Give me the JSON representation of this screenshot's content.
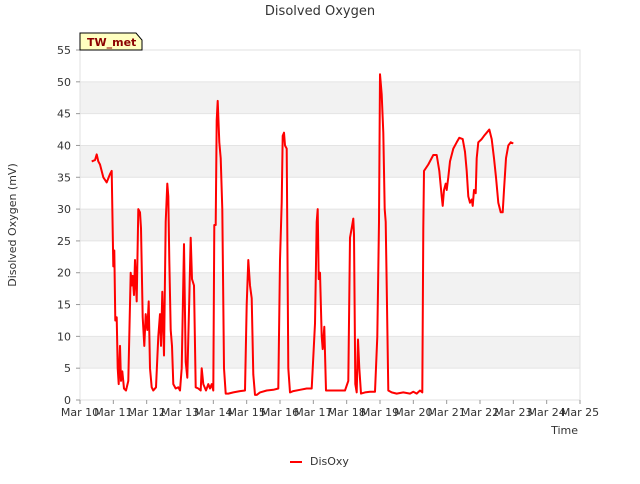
{
  "chart_data": {
    "type": "line",
    "title": "Disolved Oxygen",
    "xlabel": "Time",
    "ylabel": "Disolved Oxygen (mV)",
    "site_badge": "TW_met",
    "xlim": [
      10,
      25
    ],
    "ylim": [
      0,
      55
    ],
    "x_ticks": [
      {
        "value": 10,
        "label": "Mar 10"
      },
      {
        "value": 11,
        "label": "Mar 11"
      },
      {
        "value": 12,
        "label": "Mar 12"
      },
      {
        "value": 13,
        "label": "Mar 13"
      },
      {
        "value": 14,
        "label": "Mar 14"
      },
      {
        "value": 15,
        "label": "Mar 15"
      },
      {
        "value": 16,
        "label": "Mar 16"
      },
      {
        "value": 17,
        "label": "Mar 17"
      },
      {
        "value": 18,
        "label": "Mar 18"
      },
      {
        "value": 19,
        "label": "Mar 19"
      },
      {
        "value": 20,
        "label": "Mar 20"
      },
      {
        "value": 21,
        "label": "Mar 21"
      },
      {
        "value": 22,
        "label": "Mar 22"
      },
      {
        "value": 23,
        "label": "Mar 23"
      },
      {
        "value": 24,
        "label": "Mar 24"
      },
      {
        "value": 25,
        "label": "Mar 25"
      }
    ],
    "y_ticks": [
      0,
      5,
      10,
      15,
      20,
      25,
      30,
      35,
      40,
      45,
      50,
      55
    ],
    "grid": "horizontal alternating bands",
    "legend_position": "bottom-center",
    "series": [
      {
        "name": "DisOxy",
        "color": "#ff0000",
        "points": [
          [
            10.35,
            37.5
          ],
          [
            10.45,
            37.7
          ],
          [
            10.5,
            38.6
          ],
          [
            10.55,
            37.5
          ],
          [
            10.6,
            37.0
          ],
          [
            10.7,
            35.0
          ],
          [
            10.8,
            34.2
          ],
          [
            10.9,
            35.5
          ],
          [
            10.95,
            36.0
          ],
          [
            11.0,
            21.0
          ],
          [
            11.03,
            23.5
          ],
          [
            11.06,
            12.5
          ],
          [
            11.1,
            13.0
          ],
          [
            11.13,
            5.0
          ],
          [
            11.16,
            2.5
          ],
          [
            11.2,
            8.5
          ],
          [
            11.23,
            3.0
          ],
          [
            11.27,
            4.5
          ],
          [
            11.32,
            1.8
          ],
          [
            11.38,
            1.5
          ],
          [
            11.45,
            3.0
          ],
          [
            11.52,
            20.0
          ],
          [
            11.55,
            18.0
          ],
          [
            11.58,
            19.5
          ],
          [
            11.62,
            16.5
          ],
          [
            11.65,
            22.0
          ],
          [
            11.7,
            15.5
          ],
          [
            11.75,
            30.0
          ],
          [
            11.8,
            29.5
          ],
          [
            11.83,
            27.0
          ],
          [
            11.88,
            13.0
          ],
          [
            11.93,
            8.5
          ],
          [
            11.97,
            13.5
          ],
          [
            12.02,
            11.0
          ],
          [
            12.06,
            15.5
          ],
          [
            12.1,
            5.0
          ],
          [
            12.15,
            2.0
          ],
          [
            12.2,
            1.5
          ],
          [
            12.28,
            2.0
          ],
          [
            12.35,
            10.0
          ],
          [
            12.4,
            13.5
          ],
          [
            12.43,
            8.5
          ],
          [
            12.47,
            17.0
          ],
          [
            12.52,
            7.0
          ],
          [
            12.57,
            28.0
          ],
          [
            12.62,
            34.0
          ],
          [
            12.65,
            32.0
          ],
          [
            12.68,
            22.0
          ],
          [
            12.72,
            11.0
          ],
          [
            12.76,
            8.5
          ],
          [
            12.8,
            2.5
          ],
          [
            12.87,
            1.8
          ],
          [
            12.95,
            2.0
          ],
          [
            13.0,
            1.5
          ],
          [
            13.05,
            5.0
          ],
          [
            13.12,
            24.5
          ],
          [
            13.17,
            6.0
          ],
          [
            13.22,
            3.5
          ],
          [
            13.28,
            16.0
          ],
          [
            13.32,
            25.5
          ],
          [
            13.36,
            19.0
          ],
          [
            13.42,
            18.0
          ],
          [
            13.47,
            2.0
          ],
          [
            13.55,
            1.8
          ],
          [
            13.62,
            1.5
          ],
          [
            13.65,
            5.0
          ],
          [
            13.7,
            2.5
          ],
          [
            13.78,
            1.5
          ],
          [
            13.85,
            2.5
          ],
          [
            13.9,
            1.8
          ],
          [
            13.95,
            2.5
          ],
          [
            14.0,
            1.5
          ],
          [
            14.03,
            27.5
          ],
          [
            14.07,
            27.5
          ],
          [
            14.1,
            44.0
          ],
          [
            14.13,
            47.0
          ],
          [
            14.18,
            40.5
          ],
          [
            14.22,
            38.0
          ],
          [
            14.27,
            30.0
          ],
          [
            14.32,
            5.0
          ],
          [
            14.37,
            1.0
          ],
          [
            14.45,
            1.0
          ],
          [
            14.6,
            1.2
          ],
          [
            14.8,
            1.4
          ],
          [
            14.95,
            1.5
          ],
          [
            15.0,
            15.0
          ],
          [
            15.05,
            22.0
          ],
          [
            15.1,
            18.0
          ],
          [
            15.15,
            16.0
          ],
          [
            15.2,
            4.0
          ],
          [
            15.25,
            0.8
          ],
          [
            15.3,
            0.8
          ],
          [
            15.4,
            1.2
          ],
          [
            15.6,
            1.5
          ],
          [
            15.8,
            1.6
          ],
          [
            15.95,
            1.8
          ],
          [
            16.0,
            22.0
          ],
          [
            16.05,
            31.0
          ],
          [
            16.08,
            41.5
          ],
          [
            16.12,
            42.0
          ],
          [
            16.15,
            40.0
          ],
          [
            16.2,
            39.5
          ],
          [
            16.25,
            5.0
          ],
          [
            16.3,
            1.2
          ],
          [
            16.4,
            1.4
          ],
          [
            16.6,
            1.6
          ],
          [
            16.8,
            1.8
          ],
          [
            16.95,
            1.8
          ],
          [
            17.05,
            12.0
          ],
          [
            17.1,
            28.0
          ],
          [
            17.13,
            30.0
          ],
          [
            17.16,
            19.0
          ],
          [
            17.2,
            20.0
          ],
          [
            17.25,
            10.0
          ],
          [
            17.28,
            8.0
          ],
          [
            17.33,
            11.5
          ],
          [
            17.38,
            1.5
          ],
          [
            17.45,
            1.5
          ],
          [
            17.6,
            1.5
          ],
          [
            17.8,
            1.5
          ],
          [
            17.95,
            1.5
          ],
          [
            18.05,
            3.0
          ],
          [
            18.1,
            25.5
          ],
          [
            18.15,
            27.0
          ],
          [
            18.2,
            28.5
          ],
          [
            18.22,
            26.0
          ],
          [
            18.26,
            2.5
          ],
          [
            18.3,
            1.2
          ],
          [
            18.34,
            9.5
          ],
          [
            18.38,
            5.0
          ],
          [
            18.43,
            1.0
          ],
          [
            18.55,
            1.2
          ],
          [
            18.7,
            1.3
          ],
          [
            18.85,
            1.3
          ],
          [
            18.92,
            10.0
          ],
          [
            18.97,
            28.0
          ],
          [
            19.0,
            51.2
          ],
          [
            19.05,
            48.0
          ],
          [
            19.1,
            42.0
          ],
          [
            19.14,
            30.0
          ],
          [
            19.17,
            28.0
          ],
          [
            19.2,
            18.0
          ],
          [
            19.25,
            1.5
          ],
          [
            19.35,
            1.2
          ],
          [
            19.5,
            1.0
          ],
          [
            19.7,
            1.2
          ],
          [
            19.9,
            1.0
          ],
          [
            20.0,
            1.3
          ],
          [
            20.1,
            1.0
          ],
          [
            20.2,
            1.5
          ],
          [
            20.27,
            1.2
          ],
          [
            20.3,
            27.0
          ],
          [
            20.32,
            36.0
          ],
          [
            20.45,
            37.0
          ],
          [
            20.6,
            38.5
          ],
          [
            20.7,
            38.5
          ],
          [
            20.78,
            36.0
          ],
          [
            20.85,
            32.0
          ],
          [
            20.88,
            30.5
          ],
          [
            20.92,
            33.0
          ],
          [
            20.97,
            34.0
          ],
          [
            21.0,
            33.0
          ],
          [
            21.05,
            35.0
          ],
          [
            21.1,
            37.5
          ],
          [
            21.2,
            39.5
          ],
          [
            21.3,
            40.5
          ],
          [
            21.38,
            41.2
          ],
          [
            21.48,
            41.0
          ],
          [
            21.55,
            39.0
          ],
          [
            21.6,
            36.0
          ],
          [
            21.65,
            32.0
          ],
          [
            21.7,
            31.0
          ],
          [
            21.75,
            31.5
          ],
          [
            21.78,
            30.5
          ],
          [
            21.82,
            33.0
          ],
          [
            21.87,
            32.5
          ],
          [
            21.9,
            38.0
          ],
          [
            21.95,
            40.5
          ],
          [
            22.05,
            41.0
          ],
          [
            22.12,
            41.5
          ],
          [
            22.2,
            42.0
          ],
          [
            22.28,
            42.5
          ],
          [
            22.35,
            41.0
          ],
          [
            22.42,
            38.0
          ],
          [
            22.48,
            35.0
          ],
          [
            22.55,
            31.0
          ],
          [
            22.62,
            29.5
          ],
          [
            22.68,
            29.5
          ],
          [
            22.72,
            33.0
          ],
          [
            22.78,
            38.0
          ],
          [
            22.85,
            40.0
          ],
          [
            22.92,
            40.5
          ],
          [
            23.0,
            40.3
          ]
        ]
      }
    ]
  }
}
